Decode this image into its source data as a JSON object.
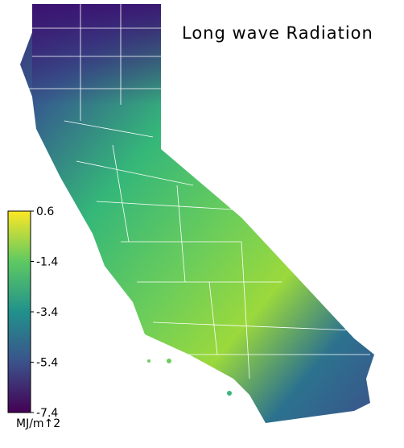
{
  "title": "Long wave Radiation",
  "colorbar": {
    "lim": [
      -7.4,
      0.6
    ],
    "ticks": [
      0.6,
      -1.4,
      -3.4,
      -5.4,
      -7.4
    ],
    "label": "MJ/m↑2"
  }
}
